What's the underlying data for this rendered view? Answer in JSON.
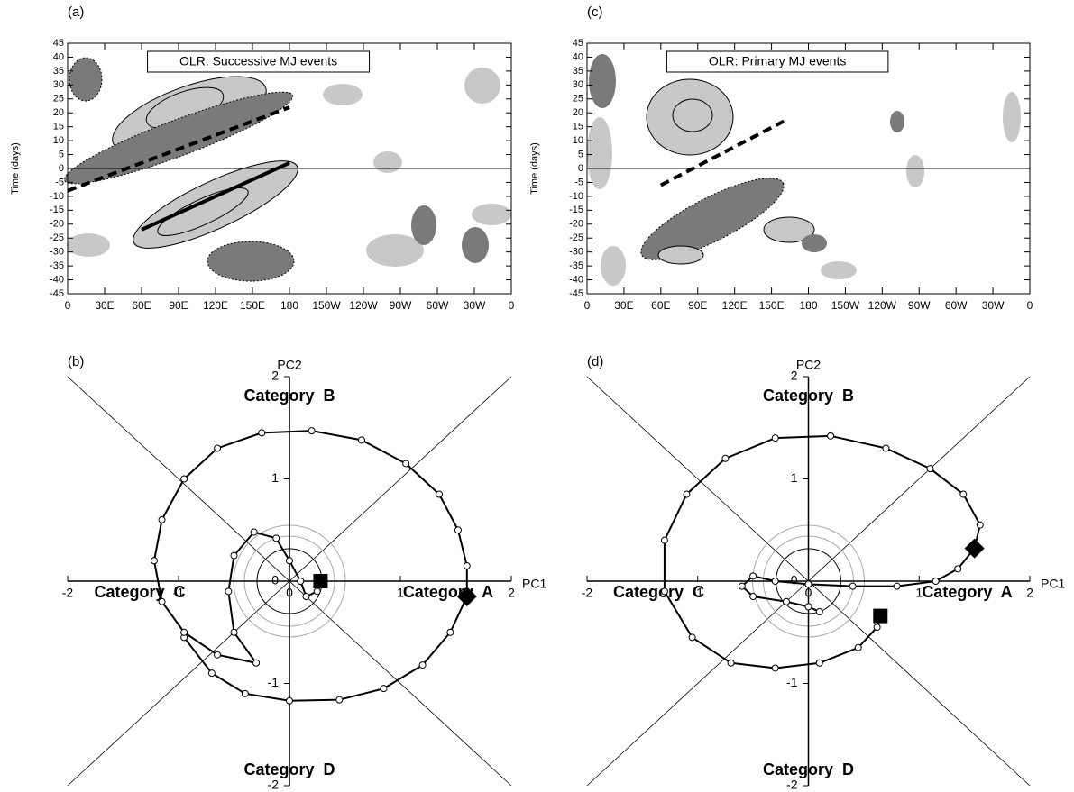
{
  "chart_data": [
    {
      "type": "hovmoller",
      "label": "(a)",
      "annotation": "OLR: Successive MJ events",
      "ylabel": "Time (days)",
      "xlim": [
        0,
        360
      ],
      "ylim": [
        -45,
        45
      ],
      "xticks": [
        0,
        {
          "value": 30,
          "label": "30E"
        },
        {
          "value": 60,
          "label": "60E"
        },
        {
          "value": 90,
          "label": "90E"
        },
        {
          "value": 120,
          "label": "120E"
        },
        {
          "value": 150,
          "label": "150E"
        },
        180,
        {
          "value": 210,
          "label": "150W"
        },
        {
          "value": 240,
          "label": "120W"
        },
        {
          "value": 270,
          "label": "90W"
        },
        {
          "value": 300,
          "label": "60W"
        },
        {
          "value": 330,
          "label": "30W"
        },
        {
          "value": 360,
          "label": "0"
        }
      ],
      "yticks": [
        -45,
        -40,
        -35,
        -30,
        -25,
        -20,
        -15,
        -10,
        -5,
        0,
        5,
        10,
        15,
        20,
        25,
        30,
        35,
        40,
        45
      ],
      "series": [
        {
          "x": [
            0,
            180
          ],
          "y": [
            -8,
            22
          ],
          "style": "dashed"
        },
        {
          "x": [
            60,
            180
          ],
          "y": [
            -22,
            2
          ],
          "style": "solid"
        }
      ]
    },
    {
      "type": "phase",
      "label": "(b)",
      "xlabel": "PC1",
      "ylabel": "PC2",
      "categories": [
        "Category  A",
        "Category  B",
        "Category  C",
        "Category  D"
      ],
      "xlim": [
        -2,
        2
      ],
      "ylim": [
        -2,
        2
      ],
      "xticks": [
        -2,
        -1,
        0,
        1,
        2
      ],
      "yticks": [
        -2,
        -1,
        0,
        1,
        2
      ],
      "series": [
        {
          "x": [
            1.6,
            1.45,
            1.2,
            0.85,
            0.45,
            0.0,
            -0.4,
            -0.7,
            -0.95,
            null,
            1.6,
            1.6,
            1.52,
            1.35,
            1.05,
            0.65,
            0.2,
            -0.25,
            -0.65,
            -0.95,
            -1.15,
            -1.22,
            -1.15,
            -0.95,
            -0.65,
            -0.3,
            -0.5,
            -0.55,
            -0.5,
            -0.32,
            -0.12,
            0.0,
            0.1,
            0.15,
            0.25,
            0.28
          ],
          "y": [
            -0.15,
            -0.5,
            -0.82,
            -1.05,
            -1.16,
            -1.17,
            -1.1,
            -0.9,
            -0.55,
            null,
            -0.15,
            0.15,
            0.5,
            0.85,
            1.15,
            1.38,
            1.47,
            1.45,
            1.3,
            1.0,
            0.6,
            0.2,
            -0.2,
            -0.5,
            -0.72,
            -0.8,
            -0.5,
            -0.1,
            0.25,
            0.48,
            0.42,
            0.2,
            0.0,
            -0.15,
            -0.1,
            0.0
          ]
        }
      ],
      "markers": [
        {
          "shape": "diamond",
          "x": 1.6,
          "y": -0.15
        },
        {
          "shape": "square",
          "x": 0.28,
          "y": 0.0
        }
      ]
    },
    {
      "type": "hovmoller",
      "label": "(c)",
      "annotation": "OLR: Primary MJ events",
      "ylabel": "Time (days)",
      "xlim": [
        0,
        360
      ],
      "ylim": [
        -45,
        45
      ],
      "xticks": [
        0,
        {
          "value": 30,
          "label": "30E"
        },
        {
          "value": 60,
          "label": "60E"
        },
        {
          "value": 90,
          "label": "90E"
        },
        {
          "value": 120,
          "label": "120E"
        },
        {
          "value": 150,
          "label": "150E"
        },
        180,
        {
          "value": 210,
          "label": "150W"
        },
        {
          "value": 240,
          "label": "120W"
        },
        {
          "value": 270,
          "label": "90W"
        },
        {
          "value": 300,
          "label": "60W"
        },
        {
          "value": 330,
          "label": "30W"
        },
        {
          "value": 360,
          "label": "0"
        }
      ],
      "yticks": [
        -45,
        -40,
        -35,
        -30,
        -25,
        -20,
        -15,
        -10,
        -5,
        0,
        5,
        10,
        15,
        20,
        25,
        30,
        35,
        40,
        45
      ],
      "series": [
        {
          "x": [
            60,
            160
          ],
          "y": [
            -6,
            17
          ],
          "style": "dashed"
        }
      ]
    },
    {
      "type": "phase",
      "label": "(d)",
      "xlabel": "PC1",
      "ylabel": "PC2",
      "categories": [
        "Category  A",
        "Category  B",
        "Category  C",
        "Category  D"
      ],
      "xlim": [
        -2,
        2
      ],
      "ylim": [
        -2,
        2
      ],
      "xticks": [
        -2,
        -1,
        0,
        1,
        2
      ],
      "yticks": [
        -2,
        -1,
        0,
        1,
        2
      ],
      "series": [
        {
          "x": [
            1.5,
            1.55,
            1.4,
            1.1,
            0.7,
            0.2,
            -0.3,
            -0.75,
            -1.1,
            -1.3,
            -1.3,
            -1.05,
            -0.7,
            -0.3,
            0.1,
            0.45,
            0.62,
            0.65,
            null,
            1.5,
            1.35,
            1.15,
            0.8,
            0.4,
            0.0,
            -0.3,
            -0.5,
            -0.6,
            -0.5,
            -0.2,
            0.0,
            0.1
          ],
          "y": [
            0.32,
            0.55,
            0.85,
            1.1,
            1.3,
            1.42,
            1.4,
            1.2,
            0.85,
            0.4,
            -0.1,
            -0.55,
            -0.8,
            -0.85,
            -0.8,
            -0.65,
            -0.45,
            -0.34,
            null,
            0.32,
            0.12,
            0.0,
            -0.05,
            -0.05,
            -0.03,
            0.0,
            0.05,
            -0.05,
            -0.15,
            -0.2,
            -0.25,
            -0.3
          ]
        }
      ],
      "markers": [
        {
          "shape": "diamond",
          "x": 1.5,
          "y": 0.32
        },
        {
          "shape": "square",
          "x": 0.65,
          "y": -0.34
        }
      ]
    }
  ]
}
